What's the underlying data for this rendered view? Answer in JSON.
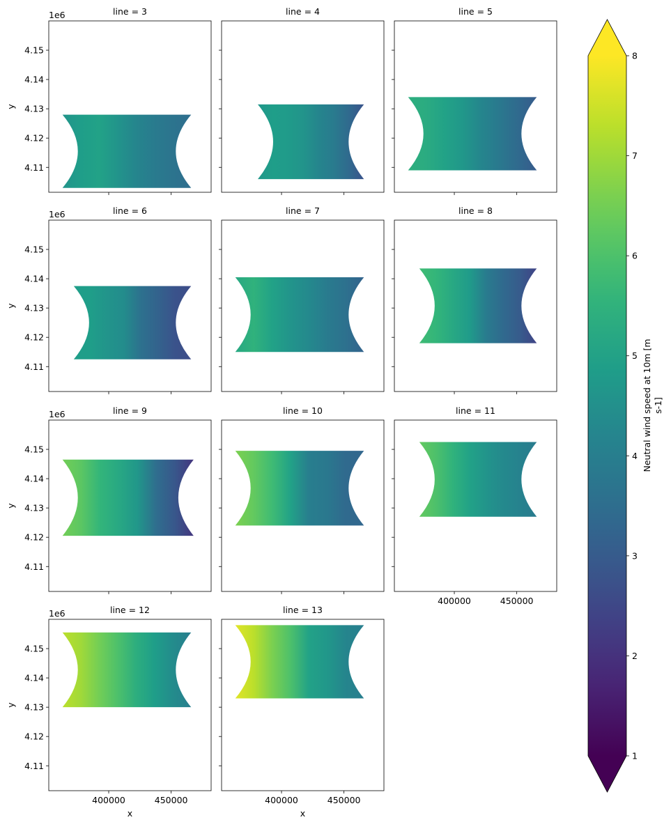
{
  "chart_data": {
    "type": "heatmap",
    "layout": "facet-grid",
    "facet_variable": "line",
    "panels": [
      {
        "title": "line = 3",
        "y_range": [
          4103000,
          4128000
        ],
        "xw": [
          363000,
          466000
        ],
        "trend": [
          4.6,
          4.9,
          5.0,
          4.6,
          4.2,
          3.9,
          3.7,
          3.5
        ]
      },
      {
        "title": "line = 4",
        "y_range": [
          4106000,
          4131500
        ],
        "xw": [
          381000,
          466000
        ],
        "trend": [
          4.7,
          4.9,
          4.8,
          4.6,
          4.2,
          3.9,
          3.4,
          2.8
        ]
      },
      {
        "title": "line = 5",
        "y_range": [
          4109000,
          4134000
        ],
        "xw": [
          363000,
          466000
        ],
        "trend": [
          5.4,
          5.3,
          5.0,
          4.7,
          4.2,
          3.8,
          3.4,
          3.0
        ]
      },
      {
        "title": "line = 6",
        "y_range": [
          4112500,
          4137500
        ],
        "xw": [
          372000,
          466000
        ],
        "trend": [
          4.9,
          4.9,
          4.6,
          4.4,
          3.6,
          3.2,
          2.8,
          2.6
        ]
      },
      {
        "title": "line = 7",
        "y_range": [
          4115000,
          4140500
        ],
        "xw": [
          363000,
          466000
        ],
        "trend": [
          5.2,
          5.5,
          5.0,
          4.6,
          4.3,
          3.9,
          3.6,
          3.2
        ]
      },
      {
        "title": "line = 8",
        "y_range": [
          4118000,
          4143500
        ],
        "xw": [
          372000,
          466000
        ],
        "trend": [
          5.8,
          5.6,
          5.2,
          4.8,
          3.9,
          3.4,
          3.0,
          2.4
        ]
      },
      {
        "title": "line = 9",
        "y_range": [
          4120500,
          4146500
        ],
        "xw": [
          363000,
          468000
        ],
        "trend": [
          6.5,
          6.2,
          5.6,
          5.2,
          4.7,
          3.5,
          2.9,
          2.1
        ]
      },
      {
        "title": "line = 10",
        "y_range": [
          4124000,
          4149500
        ],
        "xw": [
          363000,
          466000
        ],
        "trend": [
          6.6,
          6.3,
          5.8,
          5.0,
          4.0,
          3.8,
          3.4,
          3.3
        ]
      },
      {
        "title": "line = 11",
        "y_range": [
          4127000,
          4152500
        ],
        "xw": [
          372000,
          466000
        ],
        "trend": [
          6.3,
          6.0,
          5.5,
          5.0,
          4.6,
          4.3,
          4.1,
          3.9
        ]
      },
      {
        "title": "line = 12",
        "y_range": [
          4130000,
          4155500
        ],
        "xw": [
          363000,
          466000
        ],
        "trend": [
          7.3,
          7.0,
          6.5,
          6.0,
          5.4,
          4.9,
          4.4,
          4.0
        ]
      },
      {
        "title": "line = 13",
        "y_range": [
          4133000,
          4158000
        ],
        "xw": [
          363000,
          466000
        ],
        "trend": [
          7.7,
          7.3,
          6.6,
          6.0,
          5.0,
          4.7,
          4.2,
          4.0
        ]
      }
    ],
    "xlabel": "x",
    "ylabel": "y",
    "x_offset_label": "",
    "y_offset_label": "1e6",
    "xlim": [
      352000,
      482000
    ],
    "ylim": [
      4101500,
      4160000
    ],
    "xticks": [
      400000,
      450000
    ],
    "xtick_labels": [
      "400000",
      "450000"
    ],
    "yticks": [
      4.11,
      4.12,
      4.13,
      4.14,
      4.15
    ],
    "ytick_labels": [
      "4.11",
      "4.12",
      "4.13",
      "4.14",
      "4.15"
    ],
    "colorbar": {
      "label_line1": "Neutral wind speed at 10m [m",
      "label_line2": "s-1]",
      "vmin": 1,
      "vmax": 8,
      "ticks": [
        1,
        2,
        3,
        4,
        5,
        6,
        7,
        8
      ],
      "extend": "both",
      "colormap": "viridis"
    }
  }
}
